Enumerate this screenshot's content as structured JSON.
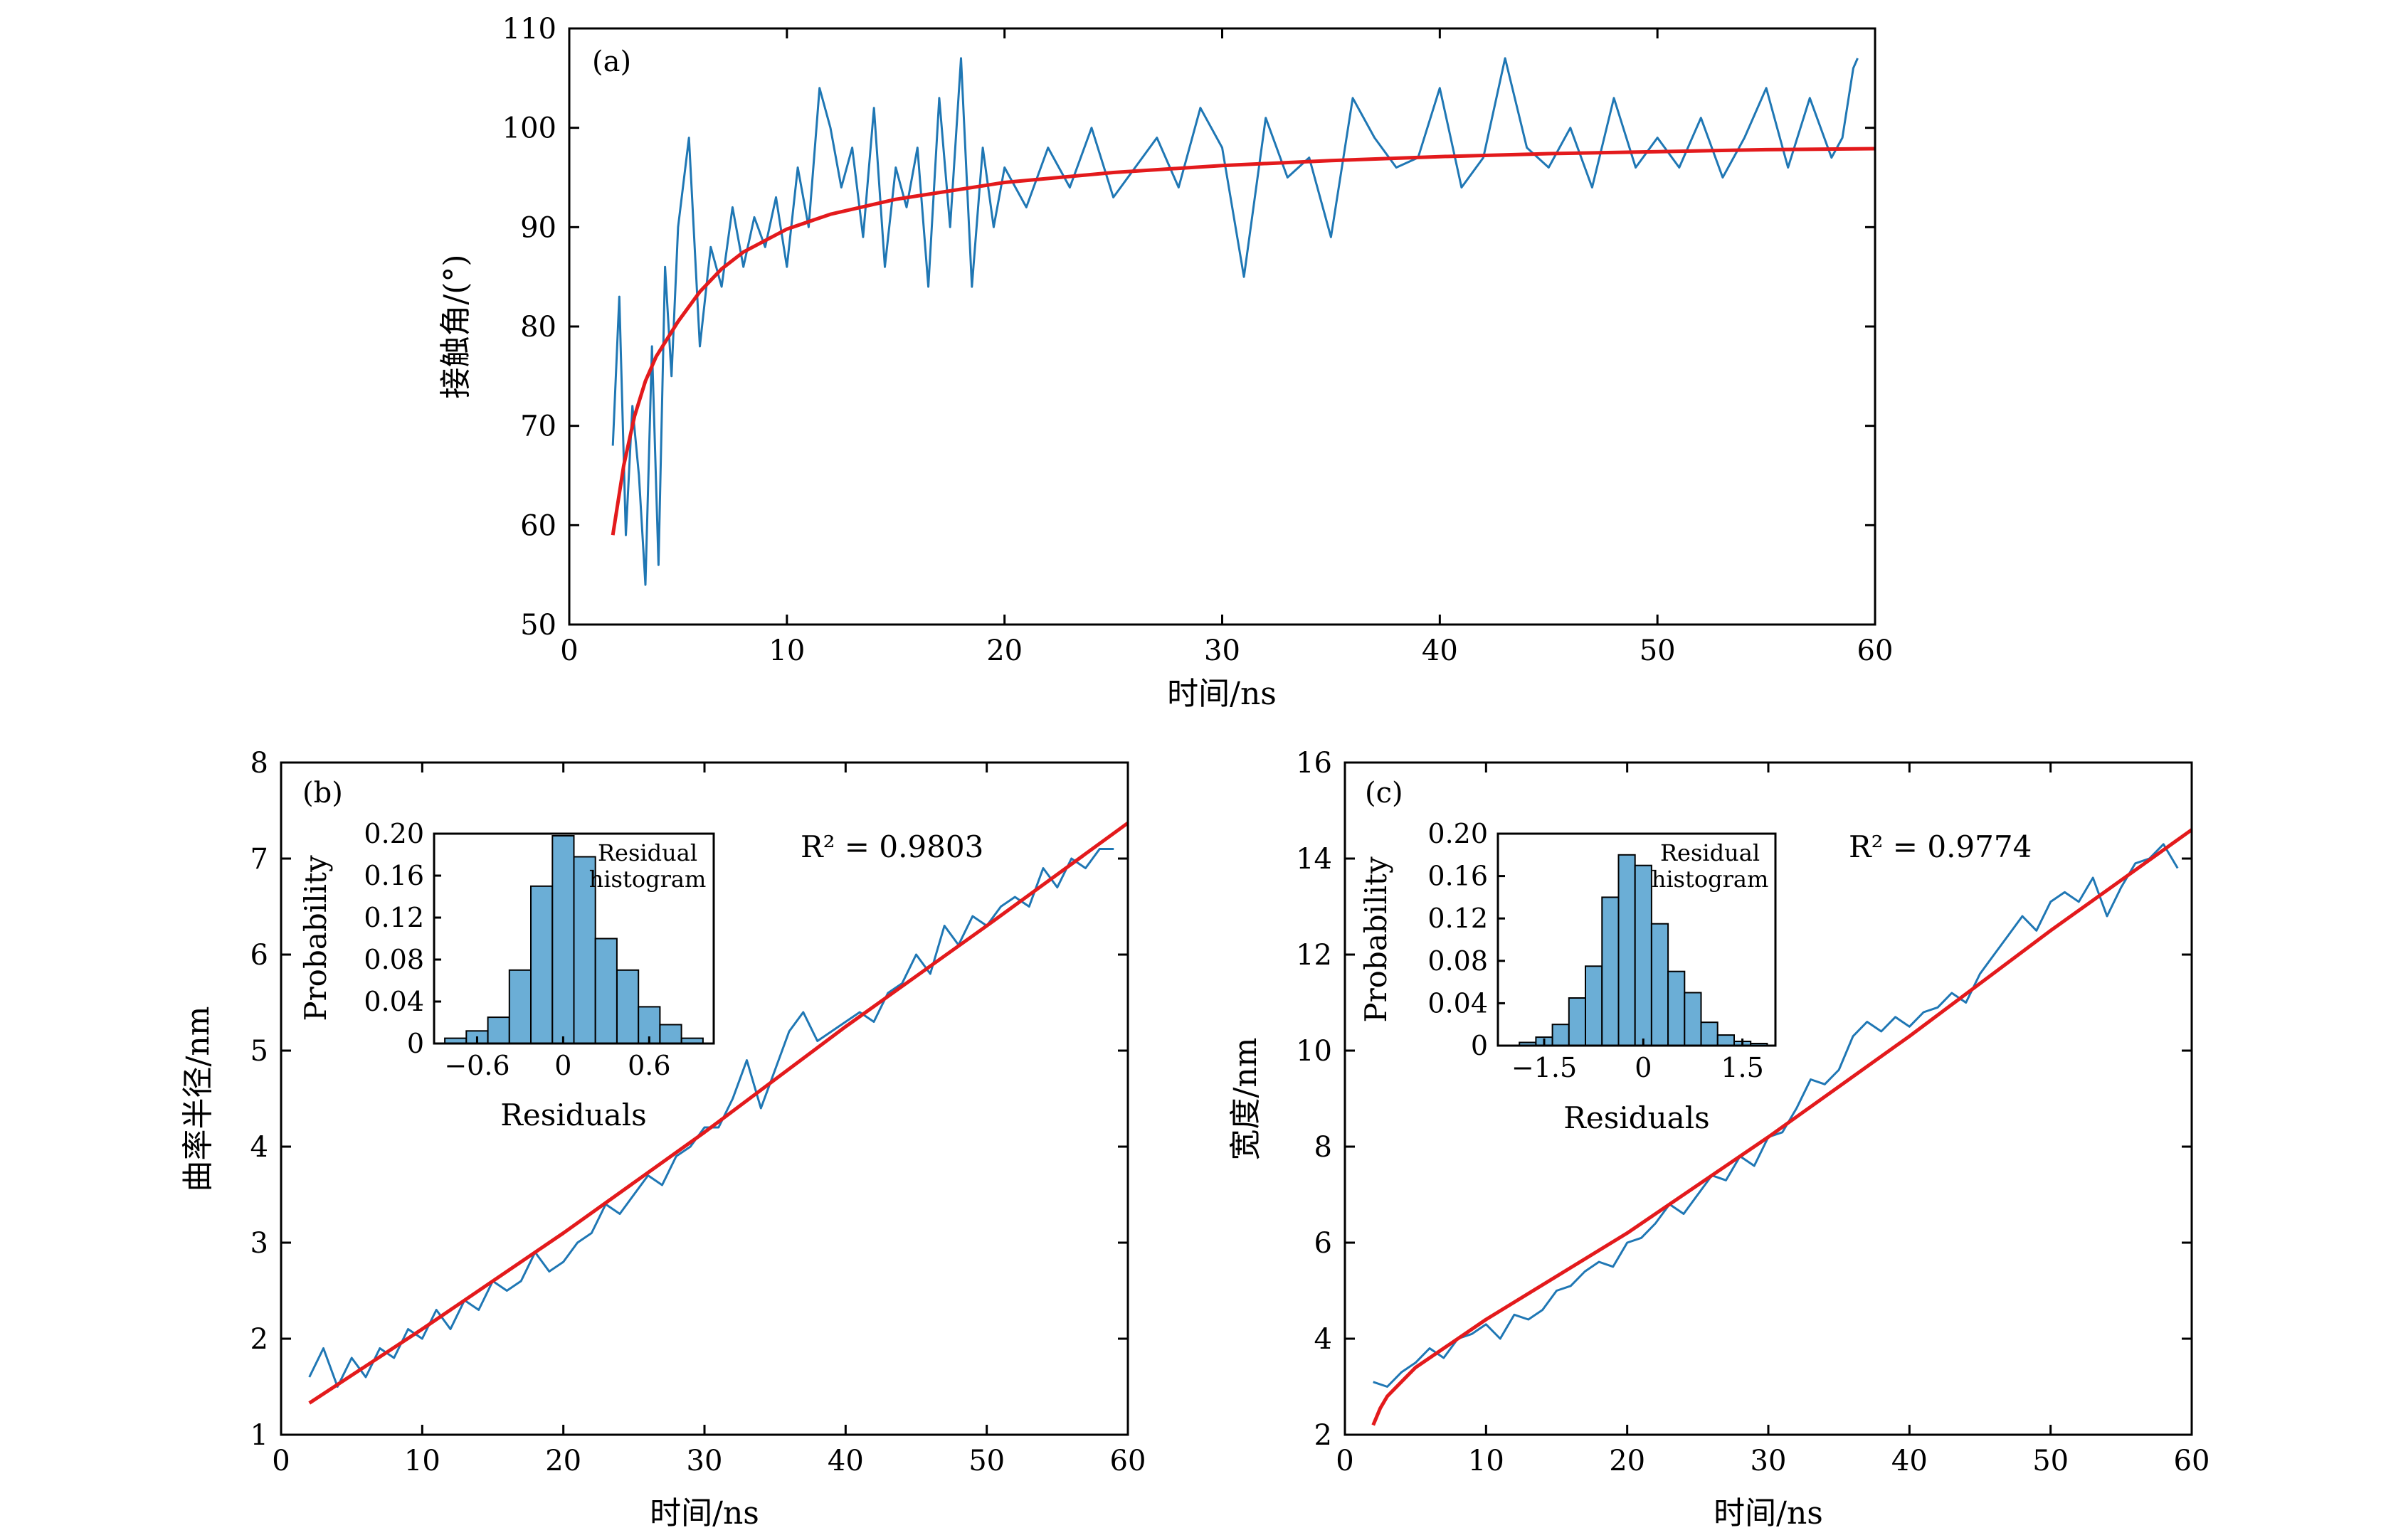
{
  "colors": {
    "data_line": "#1f77b4",
    "fit_line": "#e31a1c",
    "histogram_fill": "#6baed6",
    "axes": "#000000"
  },
  "panels": [
    {
      "id": "a",
      "label": "(a)",
      "xlabel": "时间/ns",
      "ylabel": "接触角/(°)",
      "x_ticks": [
        "0",
        "10",
        "20",
        "30",
        "40",
        "50",
        "60"
      ],
      "y_ticks": [
        "50",
        "60",
        "70",
        "80",
        "90",
        "100",
        "110"
      ]
    },
    {
      "id": "b",
      "label": "(b)",
      "xlabel": "时间/ns",
      "ylabel": "曲率半径/nm",
      "x_ticks": [
        "0",
        "10",
        "20",
        "30",
        "40",
        "50",
        "60"
      ],
      "y_ticks": [
        "1",
        "2",
        "3",
        "4",
        "5",
        "6",
        "7",
        "8"
      ],
      "r2": "R² = 0.9803",
      "inset": {
        "xlabel": "Residuals",
        "ylabel": "Probability",
        "note_line1": "Residual",
        "note_line2": "histogram",
        "x_ticks": [
          "−0.6",
          "0",
          "0.6"
        ],
        "y_ticks": [
          "0",
          "0.04",
          "0.08",
          "0.12",
          "0.16",
          "0.20"
        ]
      }
    },
    {
      "id": "c",
      "label": "(c)",
      "xlabel": "时间/ns",
      "ylabel": "宽度/nm",
      "x_ticks": [
        "0",
        "10",
        "20",
        "30",
        "40",
        "50",
        "60"
      ],
      "y_ticks": [
        "2",
        "4",
        "6",
        "8",
        "10",
        "12",
        "14",
        "16"
      ],
      "r2": "R² = 0.9774",
      "inset": {
        "xlabel": "Residuals",
        "ylabel": "Probability",
        "note_line1": "Residual",
        "note_line2": "histogram",
        "x_ticks": [
          "−1.5",
          "0",
          "1.5"
        ],
        "y_ticks": [
          "0",
          "0.04",
          "0.08",
          "0.12",
          "0.16",
          "0.20"
        ]
      }
    }
  ],
  "chart_data": [
    {
      "type": "line",
      "panel": "a",
      "xlim": [
        0,
        60
      ],
      "ylim": [
        50,
        110
      ],
      "grid": false,
      "series": [
        {
          "kind": "data",
          "x": [
            2.0,
            2.3,
            2.6,
            2.9,
            3.2,
            3.5,
            3.8,
            4.1,
            4.4,
            4.7,
            5.0,
            5.5,
            6.0,
            6.5,
            7.0,
            7.5,
            8.0,
            8.5,
            9.0,
            9.5,
            10.0,
            10.5,
            11.0,
            11.5,
            12.0,
            12.5,
            13.0,
            13.5,
            14.0,
            14.5,
            15.0,
            15.5,
            16.0,
            16.5,
            17.0,
            17.5,
            18.0,
            18.5,
            19.0,
            19.5,
            20.0,
            21.0,
            22.0,
            23.0,
            24.0,
            25.0,
            26.0,
            27.0,
            28.0,
            29.0,
            30.0,
            31.0,
            32.0,
            33.0,
            34.0,
            35.0,
            36.0,
            37.0,
            38.0,
            39.0,
            40.0,
            41.0,
            42.0,
            43.0,
            44.0,
            45.0,
            46.0,
            47.0,
            48.0,
            49.0,
            50.0,
            51.0,
            52.0,
            53.0,
            54.0,
            55.0,
            56.0,
            57.0,
            58.0,
            58.5,
            59.0,
            59.2
          ],
          "y": [
            68,
            83,
            59,
            72,
            65,
            54,
            78,
            56,
            86,
            75,
            90,
            99,
            78,
            88,
            84,
            92,
            86,
            91,
            88,
            93,
            86,
            96,
            90,
            104,
            100,
            94,
            98,
            89,
            102,
            86,
            96,
            92,
            98,
            84,
            103,
            90,
            107,
            84,
            98,
            90,
            96,
            92,
            98,
            94,
            100,
            93,
            96,
            99,
            94,
            102,
            98,
            85,
            101,
            95,
            97,
            89,
            103,
            99,
            96,
            97,
            104,
            94,
            97,
            107,
            98,
            96,
            100,
            94,
            103,
            96,
            99,
            96,
            101,
            95,
            99,
            104,
            96,
            103,
            97,
            99,
            106,
            107
          ]
        },
        {
          "kind": "fit",
          "x": [
            2.0,
            2.5,
            3.0,
            3.5,
            4.0,
            5.0,
            6.0,
            7.0,
            8.0,
            10.0,
            12.0,
            15.0,
            20.0,
            25.0,
            30.0,
            35.0,
            40.0,
            45.0,
            50.0,
            55.0,
            60.0
          ],
          "y": [
            59.0,
            66.0,
            71.0,
            74.5,
            77.0,
            80.5,
            83.5,
            85.8,
            87.5,
            89.8,
            91.3,
            92.8,
            94.5,
            95.5,
            96.2,
            96.7,
            97.1,
            97.4,
            97.6,
            97.8,
            97.9
          ]
        }
      ]
    },
    {
      "type": "line",
      "panel": "b",
      "xlim": [
        0,
        60
      ],
      "ylim": [
        1,
        8
      ],
      "grid": false,
      "series": [
        {
          "kind": "data",
          "x": [
            2.0,
            3.0,
            4.0,
            5.0,
            6.0,
            7.0,
            8.0,
            9.0,
            10.0,
            11.0,
            12.0,
            13.0,
            14.0,
            15.0,
            16.0,
            17.0,
            18.0,
            19.0,
            20.0,
            21.0,
            22.0,
            23.0,
            24.0,
            25.0,
            26.0,
            27.0,
            28.0,
            29.0,
            30.0,
            31.0,
            32.0,
            33.0,
            34.0,
            35.0,
            36.0,
            37.0,
            38.0,
            39.0,
            40.0,
            41.0,
            42.0,
            43.0,
            44.0,
            45.0,
            46.0,
            47.0,
            48.0,
            49.0,
            50.0,
            51.0,
            52.0,
            53.0,
            54.0,
            55.0,
            56.0,
            57.0,
            58.0,
            59.0
          ],
          "y": [
            1.6,
            1.9,
            1.5,
            1.8,
            1.6,
            1.9,
            1.8,
            2.1,
            2.0,
            2.3,
            2.1,
            2.4,
            2.3,
            2.6,
            2.5,
            2.6,
            2.9,
            2.7,
            2.8,
            3.0,
            3.1,
            3.4,
            3.3,
            3.5,
            3.7,
            3.6,
            3.9,
            4.0,
            4.2,
            4.2,
            4.5,
            4.9,
            4.4,
            4.8,
            5.2,
            5.4,
            5.1,
            5.2,
            5.3,
            5.4,
            5.3,
            5.6,
            5.7,
            6.0,
            5.8,
            6.3,
            6.1,
            6.4,
            6.3,
            6.5,
            6.6,
            6.5,
            6.9,
            6.7,
            7.0,
            6.9,
            7.1,
            7.1
          ]
        },
        {
          "kind": "fit",
          "x": [
            2.0,
            10.0,
            20.0,
            30.0,
            40.0,
            50.0,
            60.0
          ],
          "y": [
            1.33,
            2.1,
            3.1,
            4.15,
            5.25,
            6.3,
            7.37
          ]
        }
      ],
      "inset_histogram": {
        "bins_center": [
          -0.75,
          -0.6,
          -0.45,
          -0.3,
          -0.15,
          0.0,
          0.15,
          0.3,
          0.45,
          0.6,
          0.75,
          0.9
        ],
        "values": [
          0.005,
          0.012,
          0.025,
          0.07,
          0.15,
          0.198,
          0.178,
          0.1,
          0.07,
          0.035,
          0.018,
          0.005
        ],
        "xlim": [
          -0.9,
          1.05
        ],
        "ylim": [
          0,
          0.2
        ]
      }
    },
    {
      "type": "line",
      "panel": "c",
      "xlim": [
        0,
        60
      ],
      "ylim": [
        2,
        16
      ],
      "grid": false,
      "series": [
        {
          "kind": "data",
          "x": [
            2.0,
            3.0,
            4.0,
            5.0,
            6.0,
            7.0,
            8.0,
            9.0,
            10.0,
            11.0,
            12.0,
            13.0,
            14.0,
            15.0,
            16.0,
            17.0,
            18.0,
            19.0,
            20.0,
            21.0,
            22.0,
            23.0,
            24.0,
            25.0,
            26.0,
            27.0,
            28.0,
            29.0,
            30.0,
            31.0,
            32.0,
            33.0,
            34.0,
            35.0,
            36.0,
            37.0,
            38.0,
            39.0,
            40.0,
            41.0,
            42.0,
            43.0,
            44.0,
            45.0,
            46.0,
            47.0,
            48.0,
            49.0,
            50.0,
            51.0,
            52.0,
            53.0,
            54.0,
            55.0,
            56.0,
            57.0,
            58.0,
            59.0
          ],
          "y": [
            3.1,
            3.0,
            3.3,
            3.5,
            3.8,
            3.6,
            4.0,
            4.1,
            4.3,
            4.0,
            4.5,
            4.4,
            4.6,
            5.0,
            5.1,
            5.4,
            5.6,
            5.5,
            6.0,
            6.1,
            6.4,
            6.8,
            6.6,
            7.0,
            7.4,
            7.3,
            7.8,
            7.6,
            8.2,
            8.3,
            8.8,
            9.4,
            9.3,
            9.6,
            10.3,
            10.6,
            10.4,
            10.7,
            10.5,
            10.8,
            10.9,
            11.2,
            11.0,
            11.6,
            12.0,
            12.4,
            12.8,
            12.5,
            13.1,
            13.3,
            13.1,
            13.6,
            12.8,
            13.4,
            13.9,
            14.0,
            14.3,
            13.8
          ]
        },
        {
          "kind": "fit",
          "x": [
            2.0,
            2.5,
            3.0,
            4.0,
            5.0,
            10.0,
            20.0,
            30.0,
            40.0,
            50.0,
            60.0
          ],
          "y": [
            2.2,
            2.55,
            2.8,
            3.1,
            3.4,
            4.4,
            6.2,
            8.2,
            10.3,
            12.5,
            14.6
          ]
        }
      ],
      "inset_histogram": {
        "bins_center": [
          -2.0,
          -1.75,
          -1.5,
          -1.25,
          -1.0,
          -0.75,
          -0.5,
          -0.25,
          0.0,
          0.25,
          0.5,
          0.75,
          1.0,
          1.25,
          1.5,
          1.75
        ],
        "values": [
          0.0,
          0.003,
          0.008,
          0.02,
          0.045,
          0.075,
          0.14,
          0.18,
          0.17,
          0.115,
          0.07,
          0.05,
          0.022,
          0.01,
          0.004,
          0.002
        ],
        "xlim": [
          -2.2,
          2.0
        ],
        "ylim": [
          0,
          0.2
        ]
      }
    }
  ]
}
